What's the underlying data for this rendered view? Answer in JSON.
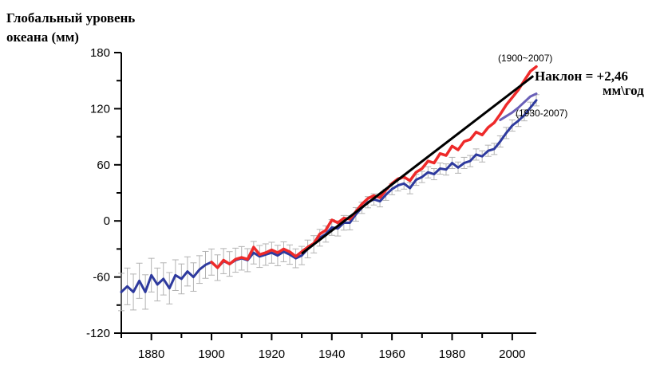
{
  "chart_data": {
    "type": "line",
    "ylabel_lines": [
      "Глобальный уровень",
      "океана (мм)"
    ],
    "xlim": [
      1870,
      2008
    ],
    "ylim": [
      -120,
      180
    ],
    "x_ticks": [
      1880,
      1900,
      1920,
      1940,
      1960,
      1980,
      2000
    ],
    "y_ticks": [
      180,
      120,
      60,
      0,
      -60,
      -120
    ],
    "series": [
      {
        "color": "#2e3a9e",
        "x": [
          1870,
          1872,
          1874,
          1876,
          1878,
          1880,
          1882,
          1884,
          1886,
          1888,
          1890,
          1892,
          1894,
          1896,
          1898,
          1900,
          1902,
          1904,
          1906,
          1908,
          1910,
          1912,
          1914,
          1916,
          1918,
          1920,
          1922,
          1924,
          1926,
          1928,
          1930,
          1932,
          1934,
          1936,
          1938,
          1940,
          1942,
          1944,
          1946,
          1948,
          1950,
          1952,
          1954,
          1956,
          1958,
          1960,
          1962,
          1964,
          1966,
          1968,
          1970,
          1972,
          1974,
          1976,
          1978,
          1980,
          1982,
          1984,
          1986,
          1988,
          1990,
          1992,
          1994,
          1996,
          1998,
          2000,
          2002,
          2004,
          2006,
          2008
        ],
        "values": [
          -76,
          -70,
          -76,
          -64,
          -76,
          -58,
          -68,
          -62,
          -72,
          -58,
          -62,
          -54,
          -60,
          -52,
          -47,
          -44,
          -50,
          -43,
          -46,
          -42,
          -40,
          -42,
          -34,
          -38,
          -36,
          -34,
          -37,
          -33,
          -36,
          -40,
          -37,
          -30,
          -25,
          -18,
          -14,
          -7,
          -8,
          -2,
          -2,
          7,
          14,
          20,
          23,
          21,
          28,
          34,
          38,
          40,
          35,
          44,
          47,
          52,
          50,
          56,
          55,
          62,
          57,
          62,
          64,
          71,
          69,
          75,
          77,
          85,
          94,
          102,
          107,
          113,
          121,
          129
        ]
      },
      {
        "color": "#ee2a2a",
        "x": [
          1900,
          1902,
          1904,
          1906,
          1908,
          1910,
          1912,
          1914,
          1916,
          1918,
          1920,
          1922,
          1924,
          1926,
          1928,
          1930,
          1932,
          1934,
          1936,
          1938,
          1940,
          1942,
          1944,
          1946,
          1948,
          1950,
          1952,
          1954,
          1956,
          1958,
          1960,
          1962,
          1964,
          1966,
          1968,
          1970,
          1972,
          1974,
          1976,
          1978,
          1980,
          1982,
          1984,
          1986,
          1988,
          1990,
          1992,
          1994,
          1996,
          1998,
          2000,
          2002,
          2004,
          2006,
          2008
        ],
        "values": [
          -44,
          -50,
          -42,
          -46,
          -41,
          -39,
          -41,
          -28,
          -36,
          -34,
          -31,
          -34,
          -30,
          -33,
          -38,
          -33,
          -28,
          -24,
          -14,
          -10,
          1,
          -2,
          3,
          2,
          10,
          18,
          24,
          27,
          25,
          33,
          40,
          45,
          47,
          43,
          52,
          56,
          64,
          62,
          72,
          70,
          80,
          76,
          85,
          87,
          95,
          92,
          100,
          105,
          114,
          124,
          132,
          140,
          150,
          160,
          165
        ]
      },
      {
        "color": "#6a60b8",
        "x": [
          1996,
          1998,
          2000,
          2002,
          2004,
          2006,
          2008
        ],
        "values": [
          108,
          112,
          116,
          121,
          127,
          133,
          136
        ]
      }
    ],
    "trend": {
      "x": [
        1930,
        2007
      ],
      "values": [
        -35,
        155
      ]
    },
    "annotations": {
      "range_1900": "(1900~2007)",
      "range_1930": "(1930-2007)",
      "slope_line1": "Наклон = +2,46",
      "slope_line2": "мм\\год"
    }
  }
}
